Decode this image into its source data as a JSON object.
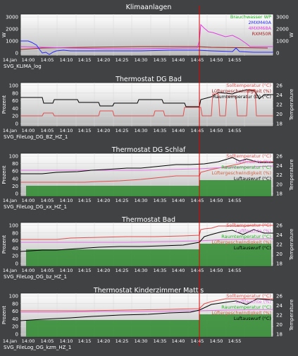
{
  "colors": {
    "page_bg": "#404244",
    "plot_bg_top": "#ffffff",
    "plot_bg_bottom": "#b9b9b9",
    "grid": "#d6d6d6",
    "text": "#ffffff",
    "now_line": "#e00000",
    "green_fill": "#2e8b2e",
    "legend_green": "#21b221",
    "legend_blue": "#2a2aff",
    "legend_magenta": "#e040e0",
    "legend_darkred": "#a02020",
    "legend_red": "#e05050",
    "legend_black": "#000000",
    "legend_pink": "#e070e0",
    "legend_orange": "#d06040"
  },
  "time_ticks": [
    "14.Jan",
    "14:00",
    "14:05",
    "14:10",
    "14:15",
    "14:20",
    "14:25",
    "14:30",
    "14:35",
    "14:40",
    "14:45",
    "14:50",
    "14:55"
  ],
  "panels": [
    {
      "title": "Klimaanlagen",
      "caption": "SVG_KLIMA_log",
      "left_axis_label": "W",
      "right_axis_label": "W",
      "left_ticks": [
        "3000",
        "2000",
        "1000",
        "0"
      ],
      "right_ticks": [
        "3000",
        "2000",
        "1000",
        "0"
      ],
      "legend": [
        {
          "text": "Brauchwasser WP",
          "color": "#21b221"
        },
        {
          "text": "2MXM40A",
          "color": "#2a2aff"
        },
        {
          "text": "4MXM68A",
          "color": "#e040e0"
        },
        {
          "text": "RXM50R",
          "color": "#a02020"
        }
      ]
    },
    {
      "title": "Thermostat DG Bad",
      "caption": "SVG_FileLog_DG_BZ_HZ_1",
      "left_axis_label": "Prozent",
      "right_axis_label": "Temperature",
      "left_ticks": [
        "100",
        "80",
        "60",
        "40",
        "20",
        "0"
      ],
      "right_ticks": [
        "26",
        "24",
        "22",
        "20",
        "18"
      ],
      "legend": [
        {
          "text": "Solltemperatur (°C)",
          "color": "#e05050"
        },
        {
          "text": "Lüftergeschwindigkeit (%)",
          "color": "#a02020"
        },
        {
          "text": "Raumtemperatur (D) (°C)",
          "color": "#000000"
        }
      ]
    },
    {
      "title": "Thermostat DG Schlaf",
      "caption": "SVG_FileLog_DG_xx_HZ_1",
      "left_axis_label": "Prozent",
      "right_axis_label": "Temperature",
      "left_ticks": [
        "100",
        "80",
        "60",
        "40",
        "20",
        "0"
      ],
      "right_ticks": [
        "26",
        "24",
        "22",
        "20",
        "18"
      ],
      "legend": [
        {
          "text": "Solltemperatur (°C)",
          "color": "#e05050"
        },
        {
          "text": "Luftfeuchte (%)",
          "color": "#e070e0"
        },
        {
          "text": "Raumtemperatur (°C)",
          "color": "#21b221"
        },
        {
          "text": "Lüftergeschwindigkeit (%)",
          "color": "#d06040"
        },
        {
          "text": "Luftauswurf (°C)",
          "color": "#000000"
        }
      ]
    },
    {
      "title": "Thermostat Bad",
      "caption": "SVG_FileLog_OG_bz_HZ_1",
      "left_axis_label": "Prozent",
      "right_axis_label": "Temperature",
      "left_ticks": [
        "100",
        "80",
        "60",
        "40",
        "20",
        "0"
      ],
      "right_ticks": [
        "26",
        "24",
        "22",
        "20",
        "18"
      ],
      "legend": [
        {
          "text": "Solltemperatur (°C)",
          "color": "#e05050"
        },
        {
          "text": "Luftfeuchte (%)",
          "color": "#e070e0"
        },
        {
          "text": "Raumtemperatur (°C)",
          "color": "#21b221"
        },
        {
          "text": "Lüftergeschwindigkeit (%)",
          "color": "#d06040"
        },
        {
          "text": "Luftauswurf (°C)",
          "color": "#000000"
        }
      ]
    },
    {
      "title": "Thermostat Kinderzimmer Mattis",
      "caption": "SVG_FileLog_OG_kzm_HZ_1",
      "left_axis_label": "Prozent",
      "right_axis_label": "Temperature",
      "left_ticks": [
        "100",
        "80",
        "60",
        "40",
        "20",
        "0"
      ],
      "right_ticks": [
        "26",
        "24",
        "22",
        "20",
        "18"
      ],
      "legend": [
        {
          "text": "Solltemperatur (°C)",
          "color": "#e05050"
        },
        {
          "text": "Luftfeuchte (%)",
          "color": "#e070e0"
        },
        {
          "text": "Raumtemperatur (°C)",
          "color": "#21b221"
        },
        {
          "text": "Lüftergeschwindigkeit (%)",
          "color": "#d06040"
        },
        {
          "text": "Luftauswurf (°C)",
          "color": "#000000"
        }
      ]
    }
  ]
}
